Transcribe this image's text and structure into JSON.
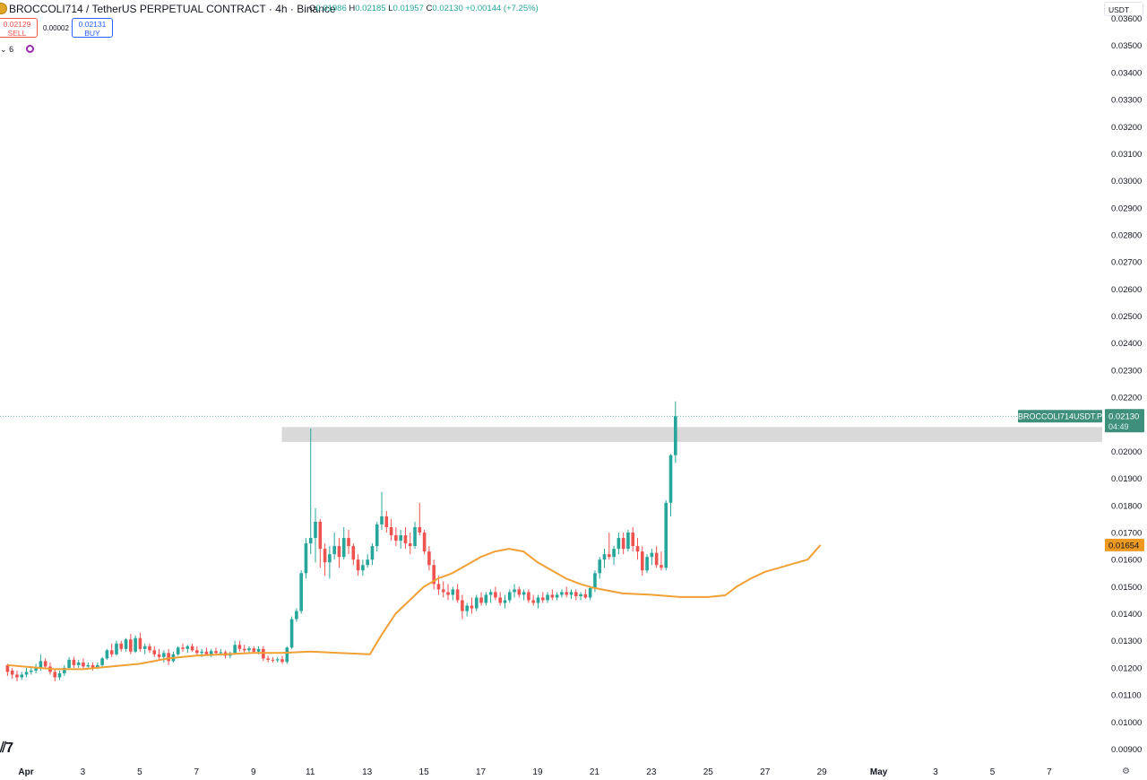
{
  "header": {
    "title": "BROCCOLI714 / TetherUS PERPETUAL CONTRACT · 4h · Binance",
    "ohlc": {
      "o_label": "O",
      "o": "0.01986",
      "h_label": "H",
      "h": "0.02185",
      "l_label": "L",
      "l": "0.01957",
      "c_label": "C",
      "c": "0.02130",
      "change": "+0.00144 (+7.25%)"
    }
  },
  "trade": {
    "sell_price": "0.02129",
    "sell_label": "SELL",
    "spread": "0.00002",
    "buy_price": "0.02131",
    "buy_label": "BUY"
  },
  "indicators": {
    "collapsed_count": "6"
  },
  "currency": "USDT",
  "colors": {
    "up": "#26a69a",
    "down": "#ef5350",
    "ma": "#f0a035",
    "zone": "#d9d9d9",
    "price_tag": "#3e8f7c",
    "ma_tag": "#ee9a22"
  },
  "icons": [
    "coin-logo",
    "eye-icon",
    "refresh-icon",
    "tradingview-logo",
    "settings-icon"
  ],
  "chart_data": {
    "type": "candlestick",
    "timeframe": "4h",
    "y_ticks": [
      "0.00900",
      "0.01000",
      "0.01100",
      "0.01200",
      "0.01300",
      "0.01400",
      "0.01500",
      "0.01600",
      "0.01700",
      "0.01800",
      "0.01900",
      "0.02000",
      "0.02100",
      "0.02200",
      "0.02300",
      "0.02400",
      "0.02500",
      "0.02600",
      "0.02700",
      "0.02800",
      "0.02900",
      "0.03000",
      "0.03100",
      "0.03200",
      "0.03300",
      "0.03400",
      "0.03500",
      "0.03600"
    ],
    "x_ticks": [
      {
        "label": "Apr",
        "day": 1,
        "bold": true
      },
      {
        "label": "3",
        "day": 3
      },
      {
        "label": "5",
        "day": 5
      },
      {
        "label": "7",
        "day": 7
      },
      {
        "label": "9",
        "day": 9
      },
      {
        "label": "11",
        "day": 11
      },
      {
        "label": "13",
        "day": 13
      },
      {
        "label": "15",
        "day": 15
      },
      {
        "label": "17",
        "day": 17
      },
      {
        "label": "19",
        "day": 19
      },
      {
        "label": "21",
        "day": 21
      },
      {
        "label": "23",
        "day": 23
      },
      {
        "label": "25",
        "day": 25
      },
      {
        "label": "27",
        "day": 27
      },
      {
        "label": "29",
        "day": 29
      },
      {
        "label": "May",
        "day": 31,
        "bold": true
      },
      {
        "label": "3",
        "day": 33
      },
      {
        "label": "5",
        "day": 35
      },
      {
        "label": "7",
        "day": 37
      }
    ],
    "ylim": [
      0.00885,
      0.03635
    ],
    "day_range": [
      1,
      39
    ],
    "resistance_zone": {
      "start_day": 10,
      "low": 0.02035,
      "high": 0.0209
    },
    "last_price": {
      "symbol": "BROCCOLI714USDT.P",
      "value": "0.02130",
      "countdown": "04:49"
    },
    "ma_value": "0.01654",
    "candles_per_day": 6,
    "first_candle_day": 0.35,
    "candles": [
      [
        0.0121,
        0.01215,
        0.0117,
        0.01185
      ],
      [
        0.0119,
        0.012,
        0.0116,
        0.01175
      ],
      [
        0.01175,
        0.0119,
        0.0115,
        0.01165
      ],
      [
        0.01165,
        0.01185,
        0.01155,
        0.01175
      ],
      [
        0.01175,
        0.012,
        0.01165,
        0.01185
      ],
      [
        0.01185,
        0.01205,
        0.01175,
        0.0119
      ],
      [
        0.0119,
        0.01215,
        0.0118,
        0.012
      ],
      [
        0.012,
        0.0125,
        0.0119,
        0.01225
      ],
      [
        0.01225,
        0.01235,
        0.01195,
        0.01205
      ],
      [
        0.01205,
        0.0122,
        0.01175,
        0.01185
      ],
      [
        0.01185,
        0.01195,
        0.0115,
        0.01165
      ],
      [
        0.01165,
        0.0119,
        0.01155,
        0.0118
      ],
      [
        0.0118,
        0.0121,
        0.0117,
        0.012
      ],
      [
        0.012,
        0.0124,
        0.01195,
        0.0123
      ],
      [
        0.0123,
        0.0124,
        0.012,
        0.0121
      ],
      [
        0.0121,
        0.0123,
        0.012,
        0.0122
      ],
      [
        0.0122,
        0.01235,
        0.01195,
        0.01205
      ],
      [
        0.01205,
        0.0122,
        0.01195,
        0.0121
      ],
      [
        0.0121,
        0.0122,
        0.0119,
        0.012
      ],
      [
        0.012,
        0.0122,
        0.01195,
        0.0121
      ],
      [
        0.0121,
        0.0124,
        0.01205,
        0.01235
      ],
      [
        0.01235,
        0.0127,
        0.0123,
        0.01265
      ],
      [
        0.01265,
        0.0129,
        0.0124,
        0.0125
      ],
      [
        0.0125,
        0.013,
        0.01245,
        0.0129
      ],
      [
        0.0129,
        0.013,
        0.0126,
        0.0127
      ],
      [
        0.0127,
        0.0131,
        0.0126,
        0.01305
      ],
      [
        0.01305,
        0.01325,
        0.0125,
        0.0126
      ],
      [
        0.0126,
        0.0132,
        0.01255,
        0.0131
      ],
      [
        0.0131,
        0.0133,
        0.0126,
        0.0127
      ],
      [
        0.0127,
        0.0129,
        0.0125,
        0.0128
      ],
      [
        0.0128,
        0.0129,
        0.01255,
        0.01265
      ],
      [
        0.01265,
        0.0128,
        0.0124,
        0.0125
      ],
      [
        0.0125,
        0.0127,
        0.0123,
        0.0124
      ],
      [
        0.0124,
        0.01265,
        0.0122,
        0.01255
      ],
      [
        0.01255,
        0.0127,
        0.0121,
        0.01225
      ],
      [
        0.01225,
        0.0126,
        0.0122,
        0.0125
      ],
      [
        0.0125,
        0.0128,
        0.01245,
        0.01275
      ],
      [
        0.01275,
        0.0129,
        0.0126,
        0.0127
      ],
      [
        0.0127,
        0.01285,
        0.01255,
        0.0128
      ],
      [
        0.0128,
        0.0129,
        0.0126,
        0.01265
      ],
      [
        0.01265,
        0.0128,
        0.01245,
        0.01255
      ],
      [
        0.01255,
        0.0127,
        0.0124,
        0.0126
      ],
      [
        0.0126,
        0.01275,
        0.01245,
        0.0125
      ],
      [
        0.0125,
        0.0127,
        0.0124,
        0.01262
      ],
      [
        0.01262,
        0.01275,
        0.01245,
        0.01255
      ],
      [
        0.01255,
        0.0127,
        0.01245,
        0.01258
      ],
      [
        0.01258,
        0.01265,
        0.01235,
        0.01245
      ],
      [
        0.01245,
        0.0126,
        0.01235,
        0.01255
      ],
      [
        0.01255,
        0.013,
        0.0125,
        0.01285
      ],
      [
        0.01285,
        0.013,
        0.0126,
        0.0127
      ],
      [
        0.0127,
        0.01285,
        0.01255,
        0.01265
      ],
      [
        0.01265,
        0.0128,
        0.01255,
        0.01272
      ],
      [
        0.01272,
        0.0128,
        0.01255,
        0.0126
      ],
      [
        0.0126,
        0.0128,
        0.0125,
        0.0127
      ],
      [
        0.0127,
        0.0128,
        0.01225,
        0.01235
      ],
      [
        0.01235,
        0.01245,
        0.0122,
        0.0123
      ],
      [
        0.0123,
        0.0124,
        0.0122,
        0.01228
      ],
      [
        0.01228,
        0.0124,
        0.0122,
        0.01232
      ],
      [
        0.01232,
        0.01245,
        0.01215,
        0.01222
      ],
      [
        0.01222,
        0.0128,
        0.01215,
        0.01275
      ],
      [
        0.01275,
        0.0139,
        0.0127,
        0.0138
      ],
      [
        0.0138,
        0.0142,
        0.0137,
        0.0141
      ],
      [
        0.0141,
        0.0156,
        0.014,
        0.0155
      ],
      [
        0.0155,
        0.0168,
        0.0153,
        0.0166
      ],
      [
        0.0166,
        0.02085,
        0.0162,
        0.0168
      ],
      [
        0.0168,
        0.0179,
        0.0159,
        0.0174
      ],
      [
        0.0174,
        0.0175,
        0.0157,
        0.0164
      ],
      [
        0.0164,
        0.0166,
        0.0154,
        0.0159
      ],
      [
        0.0159,
        0.0165,
        0.0153,
        0.0162
      ],
      [
        0.0162,
        0.017,
        0.016,
        0.0165
      ],
      [
        0.0165,
        0.0168,
        0.0157,
        0.0161
      ],
      [
        0.0161,
        0.0172,
        0.016,
        0.0168
      ],
      [
        0.0168,
        0.0171,
        0.0162,
        0.0165
      ],
      [
        0.0165,
        0.0166,
        0.0158,
        0.016
      ],
      [
        0.016,
        0.0162,
        0.0154,
        0.0156
      ],
      [
        0.0156,
        0.016,
        0.0154,
        0.0158
      ],
      [
        0.0158,
        0.0162,
        0.0157,
        0.016
      ],
      [
        0.016,
        0.0166,
        0.0158,
        0.0165
      ],
      [
        0.0165,
        0.0174,
        0.0163,
        0.0173
      ],
      [
        0.0173,
        0.0185,
        0.0171,
        0.0176
      ],
      [
        0.0176,
        0.0178,
        0.017,
        0.0172
      ],
      [
        0.0172,
        0.0175,
        0.0167,
        0.0169
      ],
      [
        0.0169,
        0.0172,
        0.0165,
        0.0167
      ],
      [
        0.0167,
        0.0171,
        0.0164,
        0.0169
      ],
      [
        0.0169,
        0.0172,
        0.0164,
        0.0166
      ],
      [
        0.0166,
        0.017,
        0.0162,
        0.0165
      ],
      [
        0.0165,
        0.0174,
        0.0164,
        0.0172
      ],
      [
        0.0172,
        0.0181,
        0.0169,
        0.017
      ],
      [
        0.017,
        0.0171,
        0.0162,
        0.0163
      ],
      [
        0.0163,
        0.0165,
        0.0156,
        0.0158
      ],
      [
        0.0158,
        0.016,
        0.0149,
        0.0151
      ],
      [
        0.0151,
        0.0154,
        0.0147,
        0.0149
      ],
      [
        0.0149,
        0.0152,
        0.0146,
        0.0148
      ],
      [
        0.0148,
        0.0151,
        0.0145,
        0.0147
      ],
      [
        0.0147,
        0.015,
        0.0145,
        0.0149
      ],
      [
        0.0149,
        0.0151,
        0.0144,
        0.0145
      ],
      [
        0.0145,
        0.0147,
        0.0138,
        0.0141
      ],
      [
        0.0141,
        0.0144,
        0.0139,
        0.0143
      ],
      [
        0.0143,
        0.0146,
        0.014,
        0.0142
      ],
      [
        0.0142,
        0.0147,
        0.0141,
        0.0146
      ],
      [
        0.0146,
        0.0148,
        0.0143,
        0.0144
      ],
      [
        0.0144,
        0.0148,
        0.0143,
        0.0147
      ],
      [
        0.0147,
        0.0149,
        0.0144,
        0.0148
      ],
      [
        0.0148,
        0.015,
        0.0145,
        0.0146
      ],
      [
        0.0146,
        0.0148,
        0.0143,
        0.0144
      ],
      [
        0.0144,
        0.0147,
        0.0142,
        0.0145
      ],
      [
        0.0145,
        0.0149,
        0.0144,
        0.0148
      ],
      [
        0.0148,
        0.0151,
        0.0146,
        0.0149
      ],
      [
        0.0149,
        0.015,
        0.0146,
        0.0147
      ],
      [
        0.0147,
        0.0149,
        0.0145,
        0.0148
      ],
      [
        0.0148,
        0.0149,
        0.0144,
        0.0145
      ],
      [
        0.0145,
        0.0147,
        0.0143,
        0.0144
      ],
      [
        0.0144,
        0.0147,
        0.0142,
        0.0146
      ],
      [
        0.0146,
        0.0148,
        0.0144,
        0.0145
      ],
      [
        0.0145,
        0.0148,
        0.0144,
        0.0147
      ],
      [
        0.0147,
        0.0149,
        0.0145,
        0.0146
      ],
      [
        0.0146,
        0.0148,
        0.0145,
        0.0147
      ],
      [
        0.0147,
        0.0149,
        0.0146,
        0.0148
      ],
      [
        0.0148,
        0.015,
        0.0146,
        0.0147
      ],
      [
        0.0147,
        0.0149,
        0.01455,
        0.0148
      ],
      [
        0.0148,
        0.0149,
        0.0145,
        0.01465
      ],
      [
        0.01465,
        0.0148,
        0.0145,
        0.01472
      ],
      [
        0.01472,
        0.0149,
        0.01455,
        0.0146
      ],
      [
        0.0146,
        0.015,
        0.0145,
        0.01495
      ],
      [
        0.01495,
        0.0156,
        0.0148,
        0.0155
      ],
      [
        0.0155,
        0.0161,
        0.0153,
        0.016
      ],
      [
        0.016,
        0.0164,
        0.0157,
        0.0162
      ],
      [
        0.0162,
        0.017,
        0.016,
        0.0161
      ],
      [
        0.0161,
        0.0165,
        0.0158,
        0.0164
      ],
      [
        0.0164,
        0.017,
        0.0162,
        0.0168
      ],
      [
        0.0168,
        0.017,
        0.0162,
        0.0164
      ],
      [
        0.0164,
        0.0171,
        0.0163,
        0.017
      ],
      [
        0.017,
        0.0172,
        0.0163,
        0.0165
      ],
      [
        0.0165,
        0.0168,
        0.016,
        0.0163
      ],
      [
        0.0163,
        0.0165,
        0.0154,
        0.0156
      ],
      [
        0.0156,
        0.0162,
        0.0155,
        0.0161
      ],
      [
        0.0161,
        0.0164,
        0.0158,
        0.01625
      ],
      [
        0.01625,
        0.0165,
        0.0157,
        0.0158
      ],
      [
        0.0158,
        0.0163,
        0.0156,
        0.0157
      ],
      [
        0.0157,
        0.0182,
        0.0156,
        0.0181
      ],
      [
        0.0181,
        0.0199,
        0.0176,
        0.01986
      ],
      [
        0.01986,
        0.02185,
        0.01957,
        0.0213
      ]
    ],
    "ma": [
      [
        0.35,
        0.0121
      ],
      [
        2.0,
        0.01195
      ],
      [
        3.0,
        0.01195
      ],
      [
        4.0,
        0.01205
      ],
      [
        5.0,
        0.01215
      ],
      [
        6.0,
        0.01235
      ],
      [
        7.0,
        0.01245
      ],
      [
        8.0,
        0.0125
      ],
      [
        9.0,
        0.01255
      ],
      [
        10.0,
        0.01255
      ],
      [
        11.0,
        0.0126
      ],
      [
        12.0,
        0.01255
      ],
      [
        13.1,
        0.0125
      ],
      [
        13.5,
        0.0132
      ],
      [
        14.0,
        0.014
      ],
      [
        14.5,
        0.0145
      ],
      [
        15.0,
        0.015
      ],
      [
        15.5,
        0.0153
      ],
      [
        16.0,
        0.0155
      ],
      [
        16.5,
        0.0158
      ],
      [
        17.0,
        0.0161
      ],
      [
        17.5,
        0.0163
      ],
      [
        18.0,
        0.0164
      ],
      [
        18.5,
        0.0163
      ],
      [
        19.0,
        0.0159
      ],
      [
        19.5,
        0.0156
      ],
      [
        20.0,
        0.0153
      ],
      [
        20.5,
        0.0151
      ],
      [
        21.0,
        0.01495
      ],
      [
        21.5,
        0.01485
      ],
      [
        22.0,
        0.01475
      ],
      [
        23.0,
        0.0147
      ],
      [
        24.0,
        0.01462
      ],
      [
        25.0,
        0.01462
      ],
      [
        25.6,
        0.01468
      ],
      [
        26.0,
        0.015
      ],
      [
        26.5,
        0.0153
      ],
      [
        27.0,
        0.01555
      ],
      [
        27.5,
        0.0157
      ],
      [
        28.0,
        0.01585
      ],
      [
        28.5,
        0.016
      ],
      [
        28.95,
        0.01654
      ]
    ]
  }
}
